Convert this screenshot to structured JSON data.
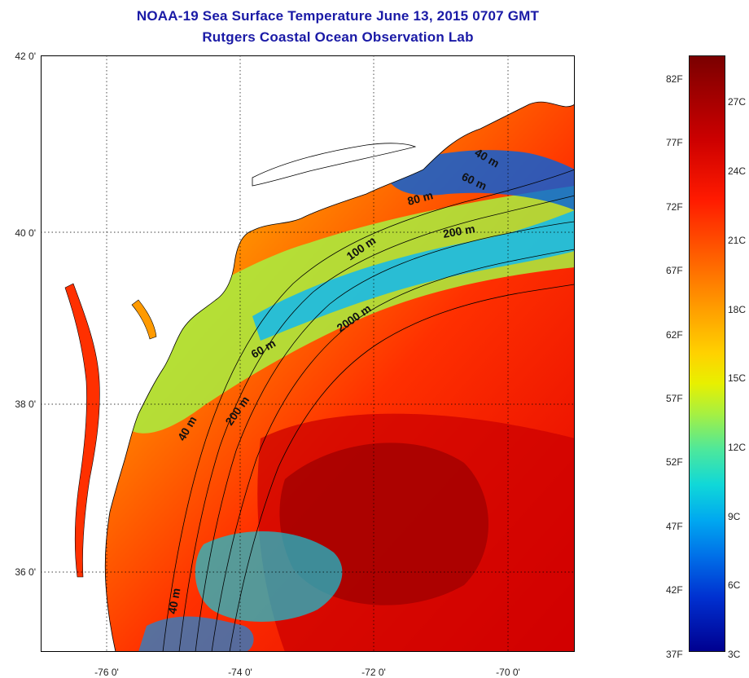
{
  "header": {
    "title": "NOAA-19 Sea Surface Temperature June 13, 2015 0707 GMT",
    "subtitle": "Rutgers Coastal Ocean Observation Lab"
  },
  "map": {
    "latitude_labels": [
      "42 0'",
      "40 0'",
      "38 0'",
      "36 0'"
    ],
    "longitude_labels": [
      "-76 0'",
      "-74 0'",
      "-72 0'",
      "-70 0'"
    ],
    "contour_labels": [
      "40 m",
      "60 m",
      "80 m",
      "200 m",
      "100 m",
      "2000 m",
      "60 m",
      "200 m",
      "40 m",
      "40 m"
    ],
    "colors": {
      "land": "#ffffff",
      "coastline": "#000000",
      "gridline": "#000000"
    }
  },
  "colorbar": {
    "fahrenheit_labels": [
      "82F",
      "77F",
      "72F",
      "67F",
      "62F",
      "57F",
      "52F",
      "47F",
      "42F",
      "37F"
    ],
    "celsius_labels": [
      "27C",
      "24C",
      "21C",
      "18C",
      "15C",
      "12C",
      "9C",
      "6C",
      "3C"
    ],
    "colors": {
      "warmest": "#7a0000",
      "warm": "#ff1a00",
      "mid": "#ffd200",
      "cool": "#10d8d8",
      "coldest": "#000090"
    }
  }
}
